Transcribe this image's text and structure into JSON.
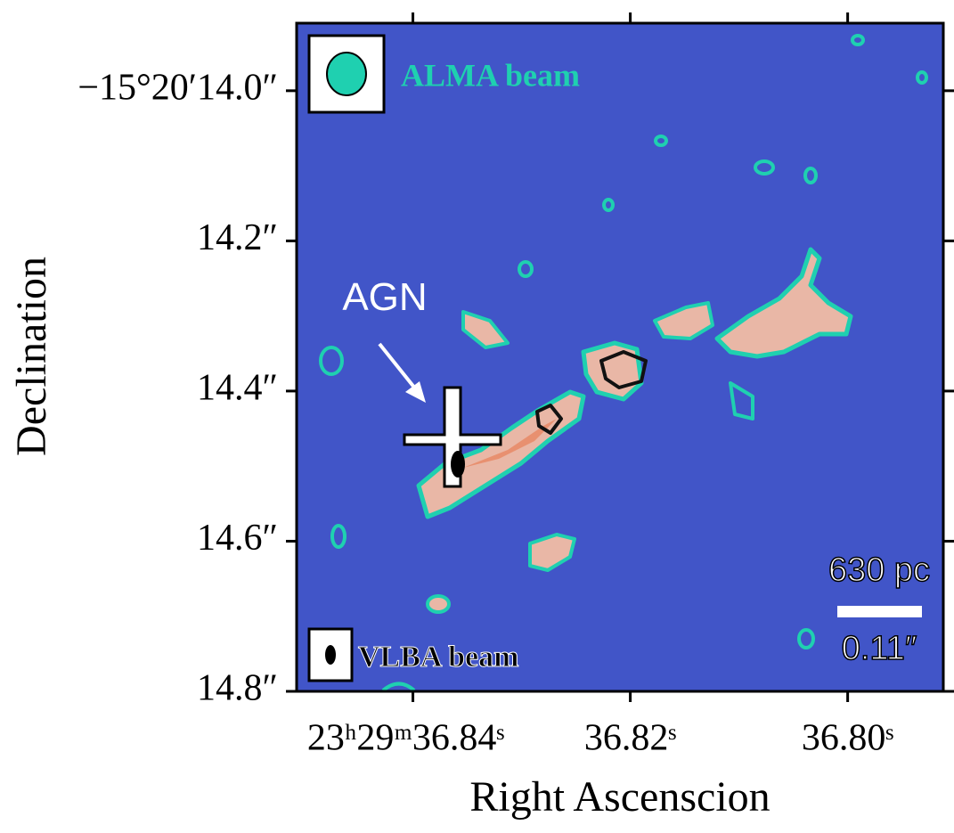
{
  "chart_data": {
    "type": "image",
    "xlabel": "Right Ascenscion",
    "ylabel": "Declination",
    "xlim": [
      36.8507,
      36.7912
    ],
    "ylim": [
      13.91,
      14.8
    ],
    "xticks": [
      {
        "value": 36.84,
        "label": "23ʰ29ᵐ36.84ˢ"
      },
      {
        "value": 36.82,
        "label": "36.82ˢ"
      },
      {
        "value": 36.8,
        "label": "36.80ˢ"
      }
    ],
    "yticks": [
      {
        "value": 14.0,
        "label": "−15°20′14.0″"
      },
      {
        "value": 14.2,
        "label": "14.2″"
      },
      {
        "value": 14.4,
        "label": "14.4″"
      },
      {
        "value": 14.6,
        "label": "14.6″"
      },
      {
        "value": 14.8,
        "label": "14.8″"
      }
    ],
    "annotations": {
      "alma_beam": "ALMA beam",
      "vlba_beam": "VLBA beam",
      "agn": "AGN",
      "scale_top": "630 pc",
      "scale_bottom": "0.11″"
    }
  }
}
